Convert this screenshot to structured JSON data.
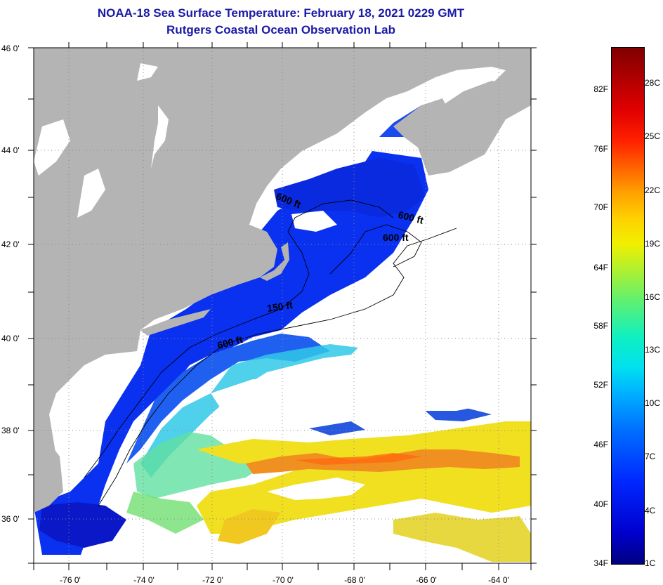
{
  "header": {
    "title": "NOAA-18 Sea Surface Temperature:  February 18, 2021 0229 GMT",
    "subtitle": "Rutgers Coastal Ocean Observation Lab"
  },
  "axes": {
    "lat_labels": [
      "46 0'",
      "44 0'",
      "42 0'",
      "40 0'",
      "38 0'",
      "36 0'"
    ],
    "lon_labels": [
      "-76 0'",
      "-74 0'",
      "-72 0'",
      "-70 0'",
      "-68 0'",
      "-66 0'",
      "-64 0'"
    ]
  },
  "contours": {
    "labels": [
      "600 ft",
      "600 ft",
      "600 ft",
      "150 ft",
      "600 ft"
    ]
  },
  "colorbar": {
    "fahrenheit": [
      "82F",
      "76F",
      "70F",
      "64F",
      "58F",
      "52F",
      "46F",
      "40F",
      "34F"
    ],
    "celsius": [
      "28C",
      "25C",
      "22C",
      "19C",
      "16C",
      "13C",
      "10C",
      "7C",
      "4C",
      "1C"
    ]
  },
  "colors": {
    "title": "#1a1aa6",
    "land": "#b4b4b4",
    "cloud": "#ffffff",
    "cold_water": "#0a28f0",
    "warm_water": "#f0a020"
  }
}
